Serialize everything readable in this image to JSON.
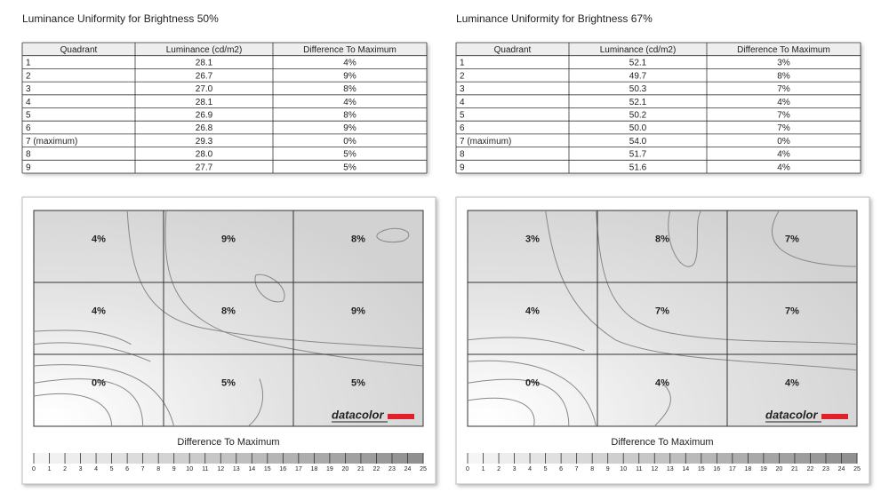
{
  "panels": [
    {
      "title": "Luminance Uniformity for Brightness 50%",
      "table": {
        "header": [
          "Quadrant",
          "Luminance (cd/m2)",
          "Difference To Maximum"
        ],
        "rows": [
          [
            "1",
            "28.1",
            "4%"
          ],
          [
            "2",
            "26.7",
            "9%"
          ],
          [
            "3",
            "27.0",
            "8%"
          ],
          [
            "4",
            "28.1",
            "4%"
          ],
          [
            "5",
            "26.9",
            "8%"
          ],
          [
            "6",
            "26.8",
            "9%"
          ],
          [
            "7 (maximum)",
            "29.3",
            "0%"
          ],
          [
            "8",
            "28.0",
            "5%"
          ],
          [
            "9",
            "27.7",
            "5%"
          ]
        ]
      },
      "map": {
        "labels": [
          "4%",
          "9%",
          "8%",
          "4%",
          "8%",
          "9%",
          "0%",
          "5%",
          "5%"
        ],
        "logo": "datacolor",
        "scale_title": "Difference To Maximum",
        "scale_ticks": [
          0,
          1,
          2,
          3,
          4,
          5,
          6,
          7,
          8,
          9,
          10,
          11,
          12,
          13,
          14,
          15,
          16,
          17,
          18,
          19,
          20,
          21,
          22,
          23,
          24,
          25
        ]
      }
    },
    {
      "title": "Luminance Uniformity for Brightness 67%",
      "table": {
        "header": [
          "Quadrant",
          "Luminance (cd/m2)",
          "Difference To Maximum"
        ],
        "rows": [
          [
            "1",
            "52.1",
            "3%"
          ],
          [
            "2",
            "49.7",
            "8%"
          ],
          [
            "3",
            "50.3",
            "7%"
          ],
          [
            "4",
            "52.1",
            "4%"
          ],
          [
            "5",
            "50.2",
            "7%"
          ],
          [
            "6",
            "50.0",
            "7%"
          ],
          [
            "7 (maximum)",
            "54.0",
            "0%"
          ],
          [
            "8",
            "51.7",
            "4%"
          ],
          [
            "9",
            "51.6",
            "4%"
          ]
        ]
      },
      "map": {
        "labels": [
          "3%",
          "8%",
          "7%",
          "4%",
          "7%",
          "7%",
          "0%",
          "4%",
          "4%"
        ],
        "logo": "datacolor",
        "scale_title": "Difference To Maximum",
        "scale_ticks": [
          0,
          1,
          2,
          3,
          4,
          5,
          6,
          7,
          8,
          9,
          10,
          11,
          12,
          13,
          14,
          15,
          16,
          17,
          18,
          19,
          20,
          21,
          22,
          23,
          24,
          25
        ]
      }
    }
  ]
}
